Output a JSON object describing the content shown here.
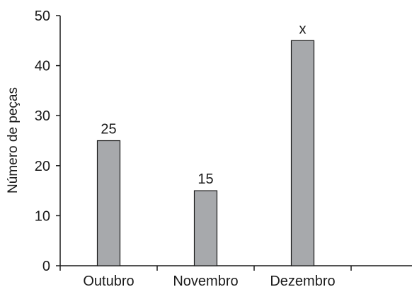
{
  "chart_data": {
    "type": "bar",
    "title": "",
    "xlabel": "",
    "ylabel": "Número de peças",
    "categories": [
      "Outubro",
      "Novembro",
      "Dezembro"
    ],
    "values": [
      25,
      15,
      45
    ],
    "data_labels": [
      "25",
      "15",
      "x"
    ],
    "ylim": [
      0,
      50
    ],
    "yticks": [
      0,
      10,
      20,
      30,
      40,
      50
    ],
    "grid": false,
    "legend": "none",
    "bar_color": "#a7a9ac",
    "bar_edge_color": "#1a1a1a",
    "axis_color": "#1a1a1a"
  }
}
